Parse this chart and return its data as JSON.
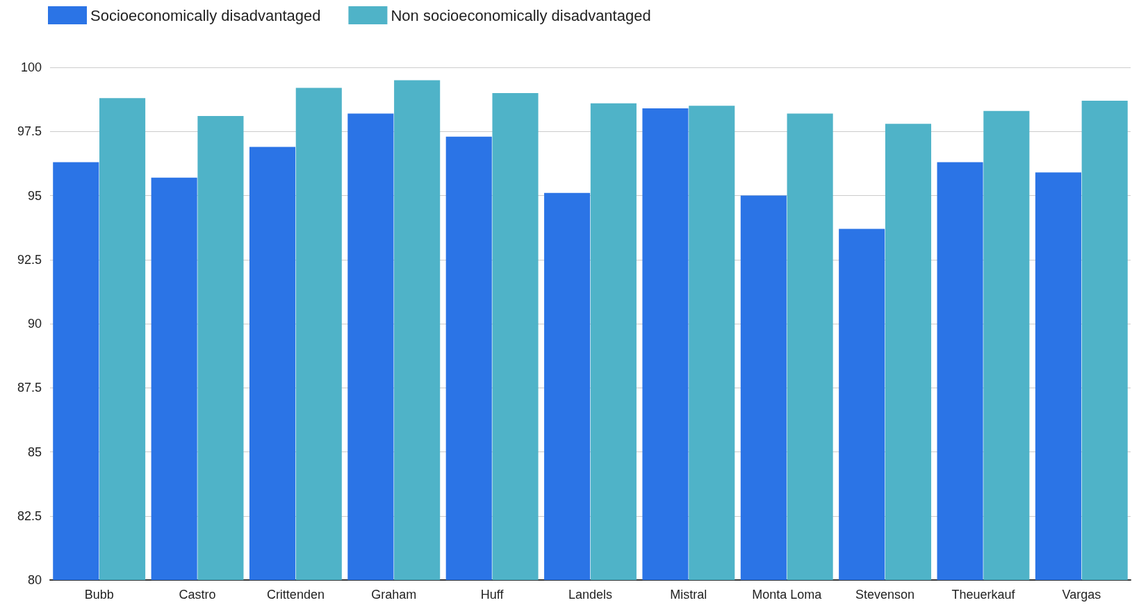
{
  "chart_data": {
    "type": "bar",
    "categories": [
      "Bubb",
      "Castro",
      "Crittenden",
      "Graham",
      "Huff",
      "Landels",
      "Mistral",
      "Monta Loma",
      "Stevenson",
      "Theuerkauf",
      "Vargas"
    ],
    "series": [
      {
        "name": "Socioeconomically disadvantaged",
        "color": "#2b74e6",
        "values": [
          96.3,
          95.7,
          96.9,
          98.2,
          97.3,
          95.1,
          98.4,
          95.0,
          93.7,
          96.3,
          95.9
        ]
      },
      {
        "name": "Non socioeconomically disadvantaged",
        "color": "#4fb3c8",
        "values": [
          98.8,
          98.1,
          99.2,
          99.5,
          99.0,
          98.6,
          98.5,
          98.2,
          97.8,
          98.3,
          98.7
        ]
      }
    ],
    "ylim": [
      80,
      100
    ],
    "yticks": [
      80,
      82.5,
      85,
      87.5,
      90,
      92.5,
      95,
      97.5,
      100
    ],
    "grid": "y",
    "legend": "top left"
  }
}
